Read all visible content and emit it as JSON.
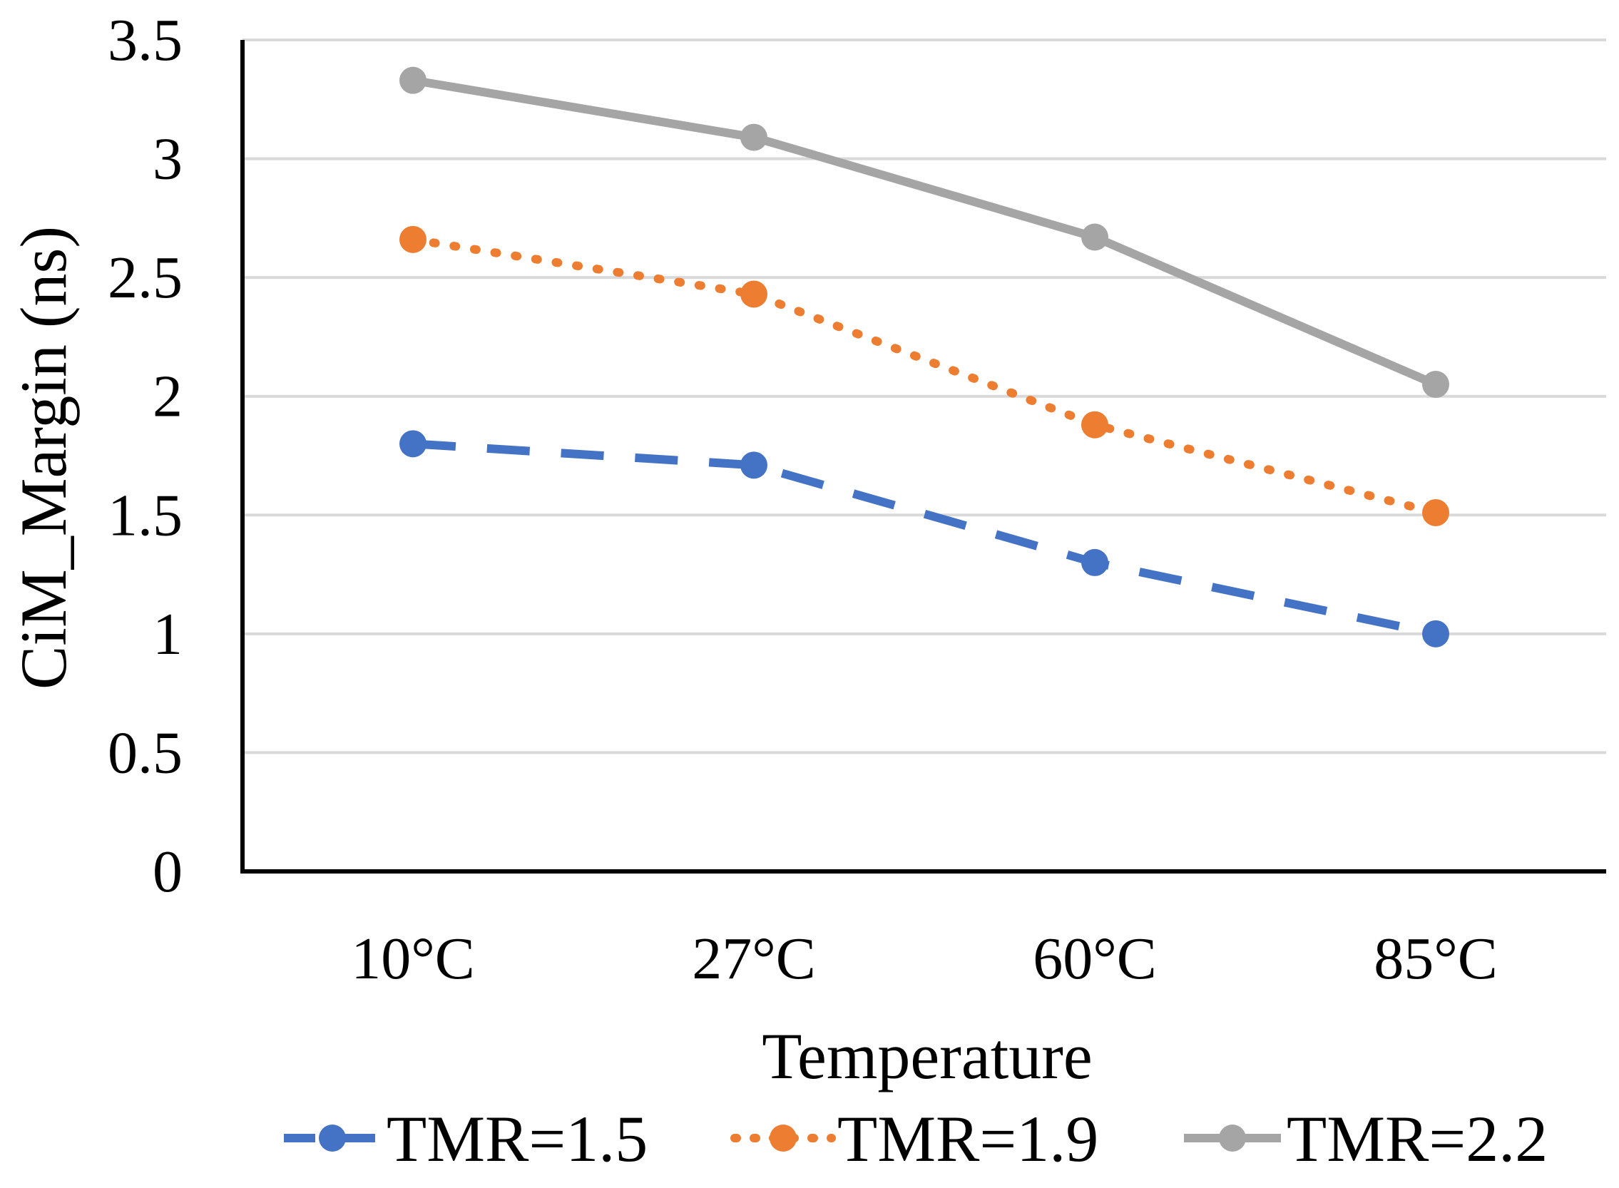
{
  "chart_data": {
    "type": "line",
    "title": "",
    "xlabel": "Temperature",
    "ylabel": "CiM_Margin (ns)",
    "categories": [
      "10°C",
      "27°C",
      "60°C",
      "85°C"
    ],
    "ylim": [
      0,
      3.5
    ],
    "yticks": [
      "0",
      "0.5",
      "1",
      "1.5",
      "2",
      "2.5",
      "3",
      "3.5"
    ],
    "grid": true,
    "legend_position": "bottom",
    "series": [
      {
        "name": "TMR=1.5",
        "values": [
          1.8,
          1.71,
          1.3,
          1.0
        ],
        "color": "#4472c4",
        "line_style": "dashed"
      },
      {
        "name": "TMR=1.9",
        "values": [
          2.66,
          2.43,
          1.88,
          1.51
        ],
        "color": "#ed7d31",
        "line_style": "dotted"
      },
      {
        "name": "TMR=2.2",
        "values": [
          3.33,
          3.09,
          2.67,
          2.05
        ],
        "color": "#a5a5a5",
        "line_style": "solid"
      }
    ]
  }
}
